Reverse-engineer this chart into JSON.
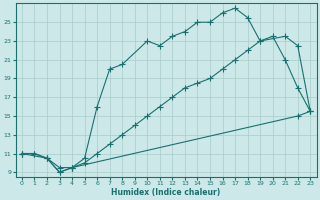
{
  "xlabel": "Humidex (Indice chaleur)",
  "bg_color": "#cce8e8",
  "grid_color": "#aacccc",
  "line_color": "#1a7070",
  "xlim": [
    -0.5,
    23.5
  ],
  "ylim": [
    8.5,
    27
  ],
  "xticks": [
    0,
    1,
    2,
    3,
    4,
    5,
    6,
    7,
    8,
    9,
    10,
    11,
    12,
    13,
    14,
    15,
    16,
    17,
    18,
    19,
    20,
    21,
    22,
    23
  ],
  "yticks": [
    9,
    11,
    13,
    15,
    17,
    19,
    21,
    23,
    25
  ],
  "curve_top_x": [
    0,
    1,
    2,
    3,
    4,
    5,
    6,
    7,
    8,
    10,
    11,
    12,
    13,
    14,
    15,
    16,
    17,
    18,
    19,
    21,
    22,
    23
  ],
  "curve_top_y": [
    11,
    11,
    10.5,
    9.5,
    9.5,
    10.5,
    16,
    20,
    20.5,
    23,
    22.5,
    23.5,
    24,
    25,
    25,
    26,
    26.5,
    25.5,
    23,
    23.5,
    22.5,
    15.5
  ],
  "curve_mid_x": [
    0,
    1,
    2,
    3,
    4,
    5,
    6,
    7,
    8,
    9,
    10,
    11,
    12,
    13,
    14,
    15,
    16,
    17,
    18,
    19,
    20,
    21,
    22,
    23
  ],
  "curve_mid_y": [
    11,
    11,
    10.5,
    9,
    9.5,
    10,
    11,
    12,
    13,
    14,
    15,
    16,
    17,
    18,
    18.5,
    19,
    20,
    21,
    22,
    23,
    23.5,
    21,
    18,
    15.5
  ],
  "curve_bot_x": [
    0,
    2,
    3,
    4,
    22,
    23
  ],
  "curve_bot_y": [
    11,
    10.5,
    9,
    9.5,
    15,
    15.5
  ]
}
